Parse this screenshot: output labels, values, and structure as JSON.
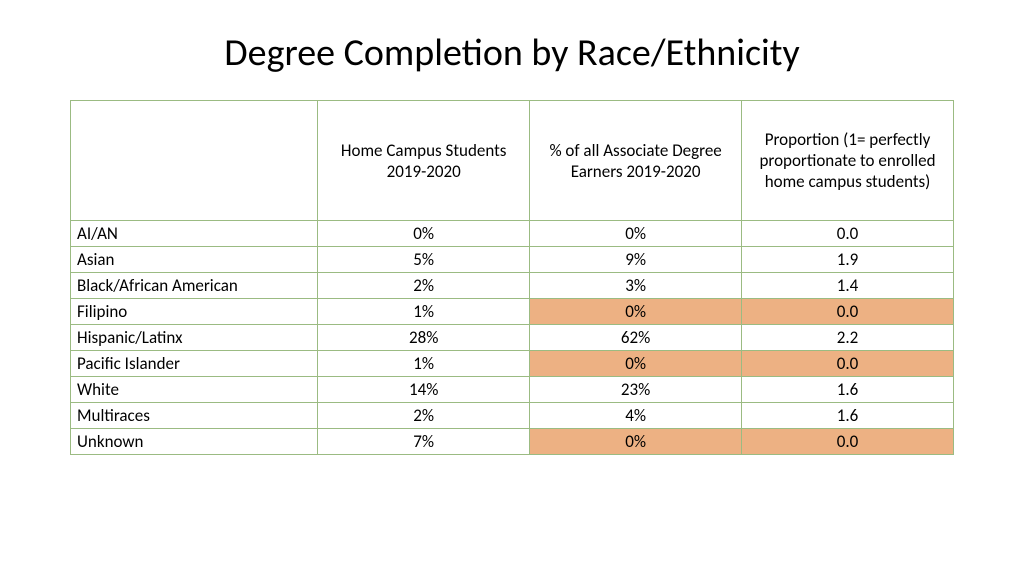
{
  "title": "Degree Completion by Race/Ethnicity",
  "table": {
    "type": "table",
    "border_color": "#9bbb82",
    "highlight_color": "#edb183",
    "background_color": "#ffffff",
    "font_family": "Calibri",
    "header_fontsize": 17,
    "body_fontsize": 17,
    "column_widths_pct": [
      28,
      24,
      24,
      24
    ],
    "columns": [
      "",
      "Home Campus Students 2019-2020",
      "% of all Associate Degree Earners 2019-2020",
      "Proportion (1= perfectly proportionate to enrolled home campus students)"
    ],
    "rows": [
      {
        "label": "AI/AN",
        "home": "0%",
        "earners": "0%",
        "prop": "0.0",
        "hl_earners": false,
        "hl_prop": false
      },
      {
        "label": "Asian",
        "home": "5%",
        "earners": "9%",
        "prop": "1.9",
        "hl_earners": false,
        "hl_prop": false
      },
      {
        "label": "Black/African American",
        "home": "2%",
        "earners": "3%",
        "prop": "1.4",
        "hl_earners": false,
        "hl_prop": false
      },
      {
        "label": "Filipino",
        "home": "1%",
        "earners": "0%",
        "prop": "0.0",
        "hl_earners": true,
        "hl_prop": true
      },
      {
        "label": "Hispanic/Latinx",
        "home": "28%",
        "earners": "62%",
        "prop": "2.2",
        "hl_earners": false,
        "hl_prop": false
      },
      {
        "label": "Pacific Islander",
        "home": "1%",
        "earners": "0%",
        "prop": "0.0",
        "hl_earners": true,
        "hl_prop": true
      },
      {
        "label": "White",
        "home": "14%",
        "earners": "23%",
        "prop": "1.6",
        "hl_earners": false,
        "hl_prop": false
      },
      {
        "label": "Multiraces",
        "home": "2%",
        "earners": "4%",
        "prop": "1.6",
        "hl_earners": false,
        "hl_prop": false
      },
      {
        "label": "Unknown",
        "home": "7%",
        "earners": "0%",
        "prop": "0.0",
        "hl_earners": true,
        "hl_prop": true
      }
    ]
  }
}
